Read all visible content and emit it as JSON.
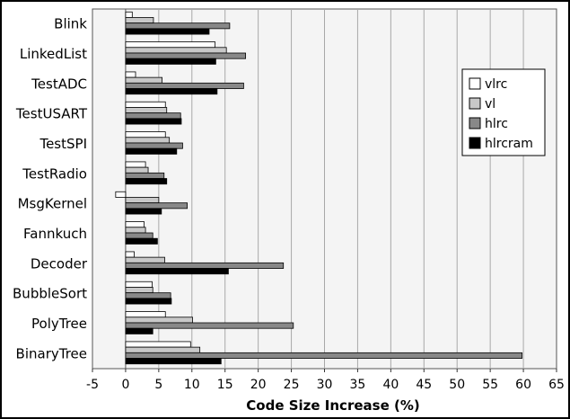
{
  "chart_data": {
    "type": "bar",
    "orientation": "horizontal",
    "title": "",
    "xlabel": "Code Size Increase (%)",
    "ylabel": "",
    "xlim": [
      -5,
      65
    ],
    "x_ticks": [
      -5,
      0,
      5,
      10,
      15,
      20,
      25,
      30,
      35,
      40,
      45,
      50,
      55,
      60,
      65
    ],
    "grid": "vertical",
    "legend_position": "right",
    "categories": [
      "Blink",
      "LinkedList",
      "TestADC",
      "TestUSART",
      "TestSPI",
      "TestRadio",
      "MsgKernel",
      "Fannkuch",
      "Decoder",
      "BubbleSort",
      "PolyTree",
      "BinaryTree"
    ],
    "series": [
      {
        "name": "vlrc",
        "color": "#ffffff",
        "values": [
          1.0,
          13.5,
          1.5,
          6.0,
          6.0,
          3.0,
          -1.5,
          2.8,
          1.3,
          4.0,
          6.0,
          9.8
        ]
      },
      {
        "name": "vl",
        "color": "#c8c8c8",
        "values": [
          4.2,
          15.2,
          5.5,
          6.2,
          6.6,
          3.4,
          5.0,
          3.0,
          5.9,
          4.1,
          10.1,
          11.2
        ]
      },
      {
        "name": "hlrc",
        "color": "#888888",
        "values": [
          15.7,
          18.1,
          17.8,
          8.3,
          8.6,
          5.8,
          9.3,
          4.1,
          23.8,
          6.8,
          25.3,
          59.8
        ]
      },
      {
        "name": "hlrcram",
        "color": "#000000",
        "values": [
          12.6,
          13.6,
          13.8,
          8.4,
          7.7,
          6.2,
          5.4,
          4.8,
          15.5,
          6.9,
          4.1,
          14.4
        ]
      }
    ]
  }
}
